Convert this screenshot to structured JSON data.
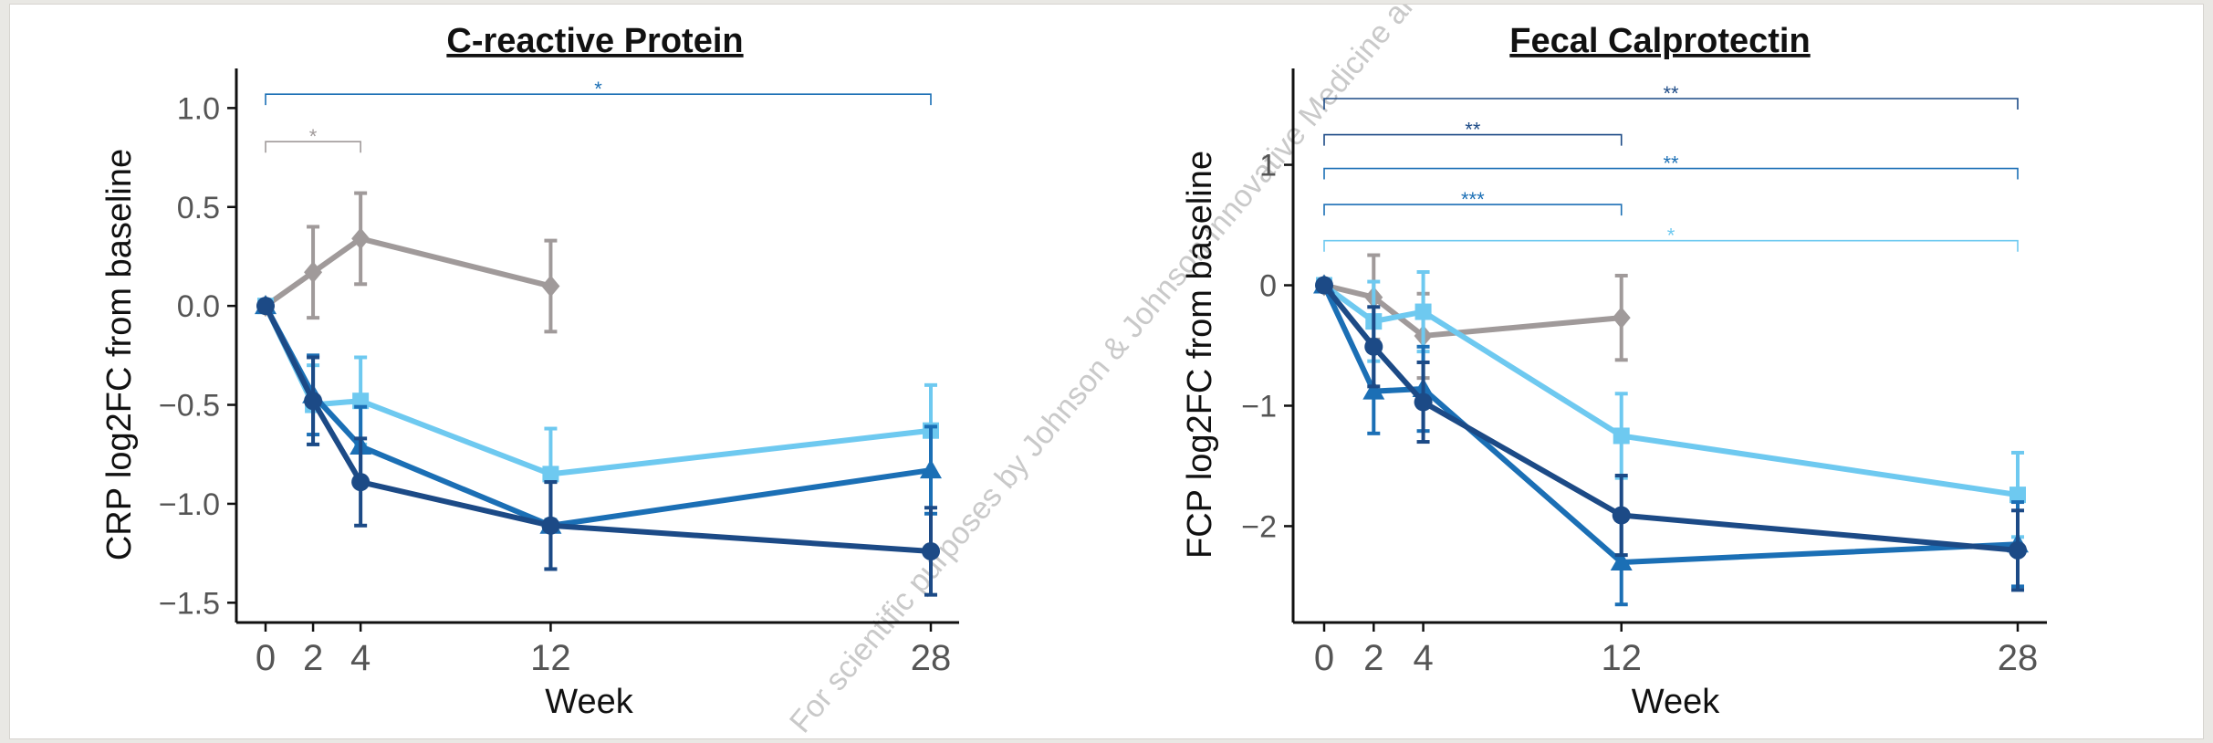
{
  "watermark": "For scientific purposes by Johnson & Johnson Innovative Medicine and is not",
  "colors": {
    "placebo": "#a09a9a",
    "light": "#6ec9f0",
    "mid": "#1b6fb5",
    "dark": "#1c4a86"
  },
  "chart_data": [
    {
      "type": "line",
      "title": "C-reactive Protein",
      "xlabel": "Week",
      "ylabel": "CRP log2FC from baseline",
      "x_ticks": [
        0,
        2,
        4,
        12,
        28
      ],
      "y_ticks": [
        1.0,
        0.5,
        0.0,
        -0.5,
        -1.0,
        -1.5
      ],
      "y_tick_labels": [
        "1.0",
        "0.5",
        "0.0",
        "−0.5",
        "−1.0",
        "−1.5"
      ],
      "xlim": [
        0,
        29
      ],
      "ylim": [
        -1.6,
        1.2
      ],
      "grid": false,
      "series": [
        {
          "color_key": "placebo",
          "marker": "diamond",
          "x": [
            0,
            2,
            4,
            12
          ],
          "y": [
            0.0,
            0.17,
            0.34,
            0.1
          ],
          "err": [
            0,
            0.23,
            0.23,
            0.23
          ]
        },
        {
          "color_key": "light",
          "marker": "square",
          "x": [
            0,
            2,
            4,
            12,
            28
          ],
          "y": [
            0.0,
            -0.5,
            -0.48,
            -0.85,
            -0.63
          ],
          "err": [
            0,
            0.2,
            0.22,
            0.23,
            0.23
          ]
        },
        {
          "color_key": "mid",
          "marker": "triangle",
          "x": [
            0,
            2,
            4,
            12,
            28
          ],
          "y": [
            0.0,
            -0.45,
            -0.71,
            -1.11,
            -0.83
          ],
          "err": [
            0,
            0.2,
            0.2,
            0.22,
            0.22
          ]
        },
        {
          "color_key": "dark",
          "marker": "circle",
          "x": [
            0,
            2,
            4,
            12,
            28
          ],
          "y": [
            0.0,
            -0.48,
            -0.89,
            -1.11,
            -1.24
          ],
          "err": [
            0,
            0.22,
            0.22,
            0.22,
            0.22
          ]
        }
      ],
      "brackets": [
        {
          "x1": 0,
          "x2": 28,
          "y": 1.07,
          "label": "*",
          "color_key": "mid"
        },
        {
          "x1": 0,
          "x2": 4,
          "y": 0.83,
          "label": "*",
          "color_key": "placebo"
        }
      ]
    },
    {
      "type": "line",
      "title": "Fecal Calprotectin",
      "xlabel": "Week",
      "ylabel": "FCP log2FC from baseline",
      "x_ticks": [
        0,
        2,
        4,
        12,
        28
      ],
      "y_ticks": [
        1,
        0,
        -1,
        -2
      ],
      "y_tick_labels": [
        "1",
        "0",
        "−1",
        "−2"
      ],
      "xlim": [
        0,
        29
      ],
      "ylim": [
        -2.8,
        1.8
      ],
      "grid": false,
      "series": [
        {
          "color_key": "placebo",
          "marker": "diamond",
          "x": [
            0,
            2,
            4,
            12
          ],
          "y": [
            0.0,
            -0.1,
            -0.42,
            -0.27
          ],
          "err": [
            0,
            0.35,
            0.35,
            0.35
          ]
        },
        {
          "color_key": "light",
          "marker": "square",
          "x": [
            0,
            2,
            4,
            12,
            28
          ],
          "y": [
            0.0,
            -0.3,
            -0.22,
            -1.25,
            -1.74
          ],
          "err": [
            0,
            0.33,
            0.33,
            0.35,
            0.35
          ]
        },
        {
          "color_key": "mid",
          "marker": "triangle",
          "x": [
            0,
            2,
            4,
            12,
            28
          ],
          "y": [
            0.0,
            -0.88,
            -0.86,
            -2.3,
            -2.15
          ],
          "err": [
            0,
            0.35,
            0.35,
            0.35,
            0.35
          ]
        },
        {
          "color_key": "dark",
          "marker": "circle",
          "x": [
            0,
            2,
            4,
            12,
            28
          ],
          "y": [
            0.0,
            -0.51,
            -0.97,
            -1.91,
            -2.2
          ],
          "err": [
            0,
            0.33,
            0.33,
            0.33,
            0.33
          ]
        }
      ],
      "brackets": [
        {
          "x1": 0,
          "x2": 28,
          "y": 1.55,
          "label": "**",
          "color_key": "dark"
        },
        {
          "x1": 0,
          "x2": 12,
          "y": 1.25,
          "label": "**",
          "color_key": "dark"
        },
        {
          "x1": 0,
          "x2": 28,
          "y": 0.97,
          "label": "**",
          "color_key": "mid"
        },
        {
          "x1": 0,
          "x2": 12,
          "y": 0.67,
          "label": "***",
          "color_key": "mid"
        },
        {
          "x1": 0,
          "x2": 28,
          "y": 0.37,
          "label": "*",
          "color_key": "light"
        }
      ]
    }
  ]
}
